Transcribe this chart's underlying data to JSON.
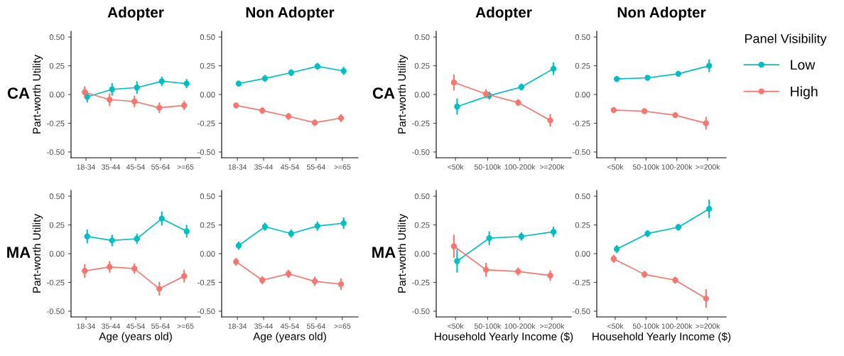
{
  "chart_data": [
    {
      "type": "line",
      "title": "Adopter",
      "ylabel": "Part-worth Utility",
      "annotations": [
        "CA"
      ],
      "legend_title": "Panel Visibility",
      "legend": "right",
      "categories": [
        "18-34",
        "35-44",
        "45-54",
        "55-64",
        ">=65"
      ],
      "ylim": [
        -0.55,
        0.55
      ],
      "yticks": [
        {
          "value": -0.5,
          "label": "-0.50"
        },
        {
          "value": -0.25,
          "label": "-0.25"
        },
        {
          "value": 0,
          "label": "0.00"
        },
        {
          "value": 0.25,
          "label": "0.25"
        },
        {
          "value": 0.5,
          "label": "0.50"
        }
      ],
      "marker": "circle",
      "grid": false,
      "series": [
        {
          "name": "Low",
          "color": "#00bfc4",
          "values": [
            -0.02,
            0.045,
            0.06,
            0.115,
            0.095
          ],
          "errors": [
            0.05,
            0.055,
            0.055,
            0.04,
            0.04
          ]
        },
        {
          "name": "High",
          "color": "#f8766d",
          "values": [
            0.02,
            -0.045,
            -0.06,
            -0.115,
            -0.095
          ],
          "errors": [
            0.05,
            0.055,
            0.05,
            0.045,
            0.04
          ]
        }
      ]
    },
    {
      "type": "line",
      "title": "Non Adopter",
      "categories": [
        "18-34",
        "35-44",
        "45-54",
        "55-64",
        ">=65"
      ],
      "ylim": [
        -0.55,
        0.55
      ],
      "yticks": [
        {
          "value": -0.5,
          "label": "-0.50"
        },
        {
          "value": -0.25,
          "label": "-0.25"
        },
        {
          "value": 0,
          "label": "0.00"
        },
        {
          "value": 0.25,
          "label": "0.25"
        },
        {
          "value": 0.5,
          "label": "0.50"
        }
      ],
      "marker": "circle",
      "grid": false,
      "series": [
        {
          "color": "#00bfc4",
          "values": [
            0.095,
            0.14,
            0.19,
            0.245,
            0.205
          ],
          "errors": [
            0.025,
            0.03,
            0.03,
            0.03,
            0.035
          ]
        },
        {
          "color": "#f8766d",
          "values": [
            -0.095,
            -0.14,
            -0.19,
            -0.245,
            -0.205
          ],
          "errors": [
            0.025,
            0.03,
            0.03,
            0.03,
            0.035
          ]
        }
      ]
    },
    {
      "type": "line",
      "title": "Adopter",
      "ylabel": "Part-worth Utility",
      "annotations": [
        "CA"
      ],
      "categories": [
        "<50k",
        "50-100k",
        "100-200k",
        ">=200k"
      ],
      "ylim": [
        -0.55,
        0.55
      ],
      "yticks": [
        {
          "value": -0.5,
          "label": "-0.50"
        },
        {
          "value": -0.25,
          "label": "-0.25"
        },
        {
          "value": 0,
          "label": "0.00"
        },
        {
          "value": 0.25,
          "label": "0.25"
        },
        {
          "value": 0.5,
          "label": "0.50"
        }
      ],
      "marker": "circle",
      "grid": false,
      "series": [
        {
          "color": "#00bfc4",
          "values": [
            -0.105,
            -0.01,
            0.065,
            0.225
          ],
          "errors": [
            0.07,
            0.035,
            0.03,
            0.055
          ]
        },
        {
          "color": "#f8766d",
          "values": [
            0.105,
            0.005,
            -0.07,
            -0.225
          ],
          "errors": [
            0.07,
            0.04,
            0.03,
            0.055
          ]
        }
      ]
    },
    {
      "type": "line",
      "title": "Non Adopter",
      "categories": [
        "<50k",
        "50-100k",
        "100-200k",
        ">=200k"
      ],
      "ylim": [
        -0.55,
        0.55
      ],
      "yticks": [
        {
          "value": -0.5,
          "label": "-0.50"
        },
        {
          "value": -0.25,
          "label": "-0.25"
        },
        {
          "value": 0,
          "label": "0.00"
        },
        {
          "value": 0.25,
          "label": "0.25"
        },
        {
          "value": 0.5,
          "label": "0.50"
        }
      ],
      "marker": "circle",
      "grid": false,
      "series": [
        {
          "color": "#00bfc4",
          "values": [
            0.135,
            0.145,
            0.18,
            0.25
          ],
          "errors": [
            0.025,
            0.02,
            0.025,
            0.055
          ]
        },
        {
          "color": "#f8766d",
          "values": [
            -0.135,
            -0.145,
            -0.18,
            -0.25
          ],
          "errors": [
            0.025,
            0.02,
            0.025,
            0.055
          ]
        }
      ]
    },
    {
      "type": "line",
      "xlabel": "Age (years old)",
      "ylabel": "Part-worth Utility",
      "annotations": [
        "MA"
      ],
      "categories": [
        "18-34",
        "35-44",
        "45-54",
        "55-64",
        ">=65"
      ],
      "ylim": [
        -0.55,
        0.55
      ],
      "yticks": [
        {
          "value": -0.5,
          "label": "-0.50"
        },
        {
          "value": -0.25,
          "label": "-0.25"
        },
        {
          "value": 0,
          "label": "0.00"
        },
        {
          "value": 0.25,
          "label": "0.25"
        },
        {
          "value": 0.5,
          "label": "0.50"
        }
      ],
      "marker": "circle",
      "grid": false,
      "series": [
        {
          "color": "#00bfc4",
          "values": [
            0.15,
            0.115,
            0.13,
            0.305,
            0.195
          ],
          "errors": [
            0.06,
            0.05,
            0.045,
            0.06,
            0.055
          ]
        },
        {
          "color": "#f8766d",
          "values": [
            -0.15,
            -0.115,
            -0.13,
            -0.305,
            -0.195
          ],
          "errors": [
            0.06,
            0.05,
            0.045,
            0.06,
            0.055
          ]
        }
      ]
    },
    {
      "type": "line",
      "xlabel": "Age (years old)",
      "categories": [
        "18-34",
        "35-44",
        "45-54",
        "55-64",
        ">=65"
      ],
      "ylim": [
        -0.55,
        0.55
      ],
      "yticks": [
        {
          "value": -0.5,
          "label": "-0.50"
        },
        {
          "value": -0.25,
          "label": "-0.25"
        },
        {
          "value": 0,
          "label": "0.00"
        },
        {
          "value": 0.25,
          "label": "0.25"
        },
        {
          "value": 0.5,
          "label": "0.50"
        }
      ],
      "marker": "circle",
      "grid": false,
      "series": [
        {
          "color": "#00bfc4",
          "values": [
            0.07,
            0.235,
            0.175,
            0.24,
            0.265
          ],
          "errors": [
            0.035,
            0.035,
            0.035,
            0.04,
            0.05
          ]
        },
        {
          "color": "#f8766d",
          "values": [
            -0.07,
            -0.23,
            -0.175,
            -0.24,
            -0.265
          ],
          "errors": [
            0.035,
            0.035,
            0.035,
            0.04,
            0.05
          ]
        }
      ]
    },
    {
      "type": "line",
      "xlabel": "Household Yearly Income ($)",
      "ylabel": "Part-worth Utility",
      "annotations": [
        "MA"
      ],
      "categories": [
        "<50k",
        "50-100k",
        "100-200k",
        ">=200k"
      ],
      "ylim": [
        -0.55,
        0.55
      ],
      "yticks": [
        {
          "value": -0.5,
          "label": "-0.50"
        },
        {
          "value": -0.25,
          "label": "-0.25"
        },
        {
          "value": 0,
          "label": "0.00"
        },
        {
          "value": 0.25,
          "label": "0.25"
        },
        {
          "value": 0.5,
          "label": "0.50"
        }
      ],
      "marker": "circle",
      "grid": false,
      "series": [
        {
          "color": "#00bfc4",
          "values": [
            -0.065,
            0.135,
            0.15,
            0.19
          ],
          "errors": [
            0.1,
            0.06,
            0.035,
            0.045
          ]
        },
        {
          "color": "#f8766d",
          "values": [
            0.065,
            -0.14,
            -0.155,
            -0.19
          ],
          "errors": [
            0.1,
            0.06,
            0.035,
            0.045
          ]
        }
      ]
    },
    {
      "type": "line",
      "xlabel": "Household Yearly Income ($)",
      "categories": [
        "<50k",
        "50-100k",
        "100-200k",
        ">=200k"
      ],
      "ylim": [
        -0.55,
        0.55
      ],
      "yticks": [
        {
          "value": -0.5,
          "label": "-0.50"
        },
        {
          "value": -0.25,
          "label": "-0.25"
        },
        {
          "value": 0,
          "label": "0.00"
        },
        {
          "value": 0.25,
          "label": "0.25"
        },
        {
          "value": 0.5,
          "label": "0.50"
        }
      ],
      "marker": "circle",
      "grid": false,
      "series": [
        {
          "color": "#00bfc4",
          "values": [
            0.04,
            0.175,
            0.23,
            0.39
          ],
          "errors": [
            0.035,
            0.03,
            0.03,
            0.08
          ]
        },
        {
          "color": "#f8766d",
          "values": [
            -0.045,
            -0.18,
            -0.23,
            -0.39
          ],
          "errors": [
            0.035,
            0.03,
            0.03,
            0.08
          ]
        }
      ]
    }
  ]
}
